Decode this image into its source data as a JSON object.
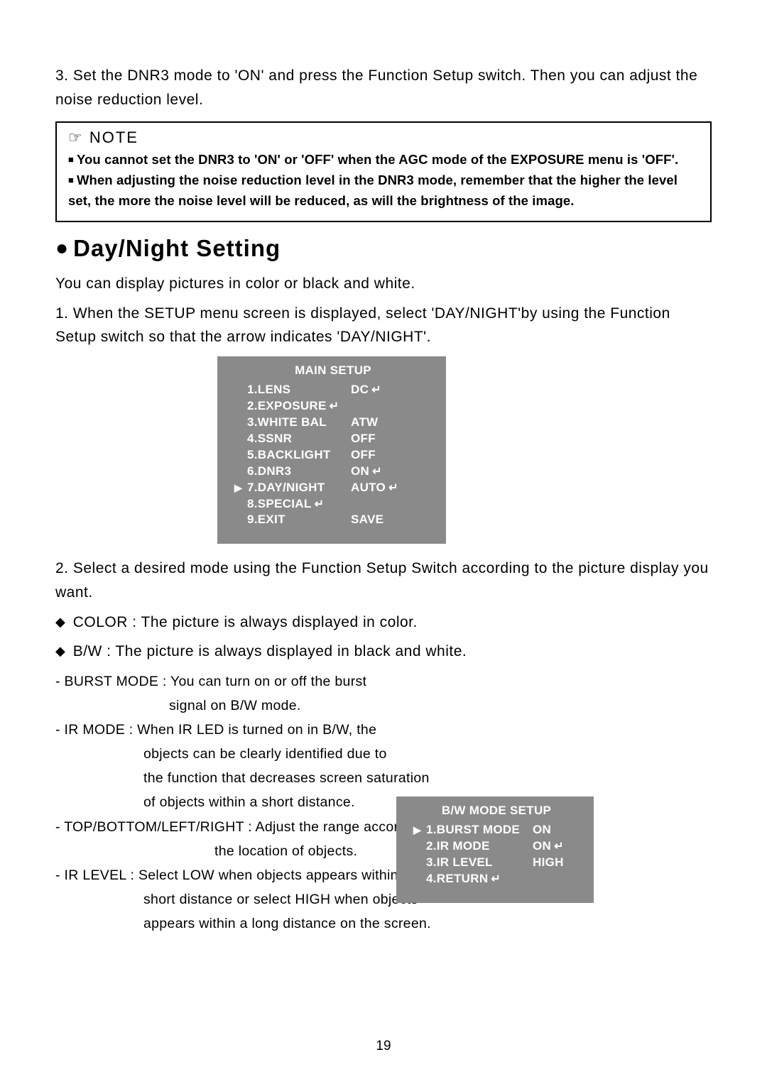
{
  "step3": "3. Set the DNR3 mode to 'ON' and press the Function Setup switch. Then you can adjust the noise reduction level.",
  "note": {
    "title": "☞  NOTE",
    "lines": [
      "You cannot set the DNR3 to 'ON' or 'OFF' when the AGC mode of the EXPOSURE menu is 'OFF'.",
      "When adjusting the noise reduction level in the DNR3 mode, remember that the higher the level set, the more the noise level will be reduced, as will the brightness of the image."
    ]
  },
  "section_title": "Day/Night Setting",
  "intro": "You can display pictures in color or black and white.",
  "step1": "1. When the SETUP menu screen is displayed, select 'DAY/NIGHT'by using the Function Setup switch so that the arrow indicates 'DAY/NIGHT'.",
  "main_menu": {
    "title": "MAIN SETUP",
    "items": [
      {
        "cursor": "",
        "label": "1.LENS",
        "value": "DC",
        "enter": true
      },
      {
        "cursor": "",
        "label": "2.EXPOSURE",
        "value": "",
        "enter": true,
        "enter_on_label": true
      },
      {
        "cursor": "",
        "label": "3.WHITE BAL",
        "value": "ATW",
        "enter": false
      },
      {
        "cursor": "",
        "label": "4.SSNR",
        "value": "OFF",
        "enter": false
      },
      {
        "cursor": "",
        "label": "5.BACKLIGHT",
        "value": "OFF",
        "enter": false
      },
      {
        "cursor": "",
        "label": "6.DNR3",
        "value": "ON",
        "enter": true
      },
      {
        "cursor": "▶",
        "label": "7.DAY/NIGHT",
        "value": "AUTO",
        "enter": true
      },
      {
        "cursor": "",
        "label": "8.SPECIAL",
        "value": "",
        "enter": true,
        "enter_on_label": true
      },
      {
        "cursor": "",
        "label": "9.EXIT",
        "value": "SAVE",
        "enter": false
      }
    ]
  },
  "step2": "2. Select a desired mode using the Function Setup Switch according to the picture display you want.",
  "modes": {
    "color": "COLOR : The picture is always displayed in color.",
    "bw": "B/W : The picture is always displayed in black and white.",
    "burst_l1": "- BURST MODE : You can turn on or off the burst",
    "burst_l2": "signal on B/W mode.",
    "ir_l1": "- IR MODE : When IR LED is turned on in B/W, the",
    "ir_l2": "objects can be clearly identified due to",
    "ir_l3": "the function that decreases screen saturation",
    "ir_l4": "of objects within a short distance.",
    "tblr_l1": "- TOP/BOTTOM/LEFT/RIGHT : Adjust the range according to",
    "tblr_l2": "the location of objects.",
    "irlvl_l1": "- IR LEVEL : Select LOW when objects appears within a",
    "irlvl_l2": "short distance or select HIGH when objects",
    "irlvl_l3": "appears within a long distance on the screen."
  },
  "bw_menu": {
    "title": "B/W MODE SETUP",
    "items": [
      {
        "cursor": "▶",
        "label": "1.BURST MODE",
        "value": "ON",
        "enter": false
      },
      {
        "cursor": "",
        "label": "2.IR MODE",
        "value": "ON",
        "enter": true
      },
      {
        "cursor": "",
        "label": "3.IR LEVEL",
        "value": "HIGH",
        "enter": false
      },
      {
        "cursor": "",
        "label": "4.RETURN",
        "value": "",
        "enter": true,
        "enter_on_label": true
      }
    ]
  },
  "page_number": "19",
  "colors": {
    "menu_bg": "#8a8a8a",
    "menu_fg": "#ffffff",
    "page_bg": "#ffffff",
    "text": "#000000"
  }
}
